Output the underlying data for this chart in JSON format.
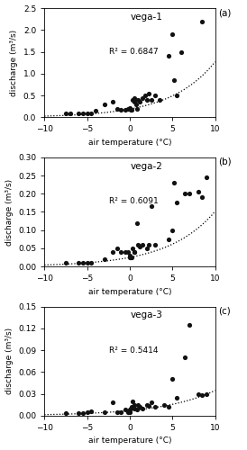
{
  "vega1": {
    "label": "vega-1",
    "panel": "(a)",
    "r2": "R² = 0.6847",
    "xlim": [
      -10,
      10
    ],
    "ylim": [
      0,
      2.5
    ],
    "yticks": [
      0,
      0.5,
      1.0,
      1.5,
      2.0,
      2.5
    ],
    "scatter_x": [
      -7.5,
      -7,
      -6,
      -5.5,
      -5,
      -4.5,
      -4,
      -3,
      -2,
      -1.5,
      -1,
      -0.5,
      -0.2,
      0,
      0,
      0.1,
      0.2,
      0.3,
      0.5,
      0.5,
      0.7,
      0.8,
      1.0,
      1.2,
      1.5,
      1.8,
      2.0,
      2.2,
      2.5,
      3.0,
      3.5,
      4.5,
      5.0,
      5.2,
      5.5,
      6.0,
      8.5
    ],
    "scatter_y": [
      0.1,
      0.08,
      0.08,
      0.08,
      0.1,
      0.08,
      0.15,
      0.3,
      0.35,
      0.2,
      0.18,
      0.18,
      0.2,
      0.2,
      0.22,
      0.18,
      0.18,
      0.4,
      0.35,
      0.45,
      0.3,
      0.2,
      0.4,
      0.35,
      0.45,
      0.5,
      0.4,
      0.55,
      0.4,
      0.5,
      0.4,
      1.4,
      1.9,
      0.85,
      0.5,
      1.5,
      2.2
    ],
    "fit_a": 0.19,
    "fit_b": 0.19
  },
  "vega2": {
    "label": "vega-2",
    "panel": "(b)",
    "r2": "R² = 0.6091",
    "xlim": [
      -10,
      10
    ],
    "ylim": [
      0,
      0.3
    ],
    "yticks": [
      0.0,
      0.05,
      0.1,
      0.15,
      0.2,
      0.25,
      0.3
    ],
    "scatter_x": [
      -7.5,
      -6,
      -5.5,
      -5,
      -4.5,
      -3,
      -2,
      -1.5,
      -1,
      -0.5,
      -0.2,
      0,
      0,
      0.1,
      0.2,
      0.3,
      0.5,
      0.5,
      0.8,
      1.0,
      1.2,
      1.5,
      2.0,
      2.2,
      2.5,
      3.0,
      4.5,
      5.0,
      5.2,
      5.5,
      6.5,
      7.0,
      8.0,
      8.5,
      9.0
    ],
    "scatter_y": [
      0.01,
      0.01,
      0.01,
      0.01,
      0.01,
      0.02,
      0.04,
      0.05,
      0.04,
      0.04,
      0.04,
      0.03,
      0.025,
      0.025,
      0.025,
      0.05,
      0.04,
      0.04,
      0.12,
      0.06,
      0.055,
      0.06,
      0.05,
      0.06,
      0.165,
      0.06,
      0.075,
      0.1,
      0.23,
      0.175,
      0.2,
      0.2,
      0.205,
      0.19,
      0.245
    ],
    "fit_a": 0.025,
    "fit_b": 0.18
  },
  "vega3": {
    "label": "vega-3",
    "panel": "(c)",
    "r2": "R² = 0.5414",
    "xlim": [
      -10,
      10
    ],
    "ylim": [
      0,
      0.15
    ],
    "yticks": [
      0.0,
      0.03,
      0.06,
      0.09,
      0.12,
      0.15
    ],
    "scatter_x": [
      -7.5,
      -6,
      -5.5,
      -5,
      -4.5,
      -3,
      -2,
      -1.5,
      -1,
      -0.5,
      -0.2,
      0,
      0,
      0.1,
      0.2,
      0.3,
      0.5,
      0.5,
      0.8,
      1.0,
      1.2,
      1.5,
      2.0,
      2.2,
      2.5,
      3.0,
      4.0,
      4.5,
      5.0,
      5.5,
      6.5,
      7.0,
      8.0,
      8.5,
      9.0
    ],
    "scatter_y": [
      0.003,
      0.003,
      0.003,
      0.005,
      0.006,
      0.005,
      0.018,
      0.005,
      0.005,
      0.008,
      0.005,
      0.005,
      0.008,
      0.01,
      0.012,
      0.02,
      0.01,
      0.015,
      0.008,
      0.015,
      0.012,
      0.01,
      0.015,
      0.013,
      0.018,
      0.012,
      0.015,
      0.012,
      0.05,
      0.025,
      0.08,
      0.125,
      0.03,
      0.028,
      0.03
    ],
    "fit_a": 0.007,
    "fit_b": 0.16
  },
  "bg_color": "#ffffff",
  "dot_color": "#111111",
  "dot_size": 14,
  "font_size": 6.5,
  "label_fontsize": 7.5,
  "panel_fontsize": 7.5
}
